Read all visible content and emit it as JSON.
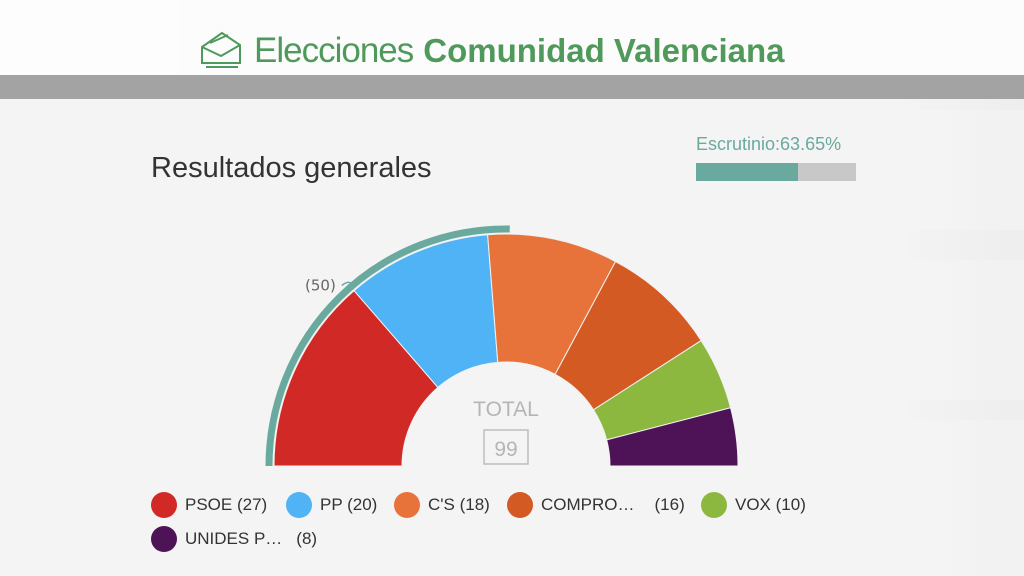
{
  "header": {
    "title_light": "Elecciones",
    "title_bold": "Comunidad Valenciana",
    "icon": "envelope-icon"
  },
  "section_title": "Resultados generales",
  "scrutiny": {
    "label": "Escrutinio:",
    "value": "63.65%",
    "fraction": 0.6365
  },
  "chart_data": {
    "type": "pie",
    "subtype": "parliament-semicircle",
    "total_label": "TOTAL",
    "total": 99,
    "majority_label": "(50)",
    "majority": 50,
    "majority_color": "#6aaa9e",
    "series": [
      {
        "name": "PSOE",
        "label": "PSOE (27)",
        "value": 27,
        "color": "#d12a26"
      },
      {
        "name": "PP",
        "label": "PP (20)",
        "value": 20,
        "color": "#4fb3f6"
      },
      {
        "name": "C'S",
        "label": "C'S (18)",
        "value": 18,
        "color": "#e8733a"
      },
      {
        "name": "COMPRO…",
        "label": "COMPRO…",
        "seats_label": "(16)",
        "value": 16,
        "color": "#d45a24"
      },
      {
        "name": "VOX",
        "label": "VOX (10)",
        "value": 10,
        "color": "#8db83f"
      },
      {
        "name": "UNIDES P…",
        "label": "UNIDES P…",
        "seats_label": "(8)",
        "value": 8,
        "color": "#4e1257"
      }
    ],
    "legend_position": "bottom"
  }
}
